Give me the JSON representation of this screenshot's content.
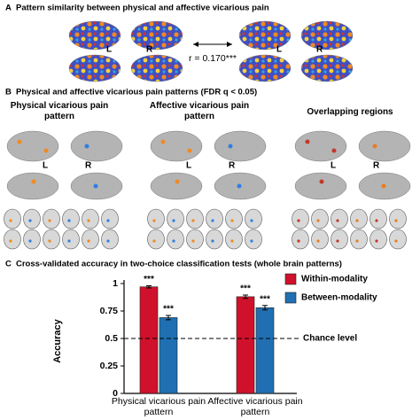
{
  "panel_a": {
    "label": "A",
    "title": "Pattern similarity between physical and affective vicarious pain",
    "hemispheres": [
      "L",
      "R",
      "L",
      "R"
    ],
    "correlation": "r = 0.170***"
  },
  "panel_b": {
    "label": "B",
    "title": "Physical and affective vicarious pain patterns (FDR q < 0.05)",
    "columns": [
      {
        "heading": "Physical vicarious pain pattern",
        "hemispheres": [
          "L",
          "R"
        ]
      },
      {
        "heading": "Affective vicarious pain pattern",
        "hemispheres": [
          "L",
          "R"
        ]
      },
      {
        "heading": "Overlapping regions",
        "hemispheres": [
          "L",
          "R"
        ]
      }
    ]
  },
  "panel_c": {
    "label": "C",
    "title": "Cross-validated accuracy in two-choice classification tests (whole brain patterns)"
  },
  "chart_data": {
    "type": "bar",
    "y_label": "Accuracy",
    "categories": [
      "Physical vicarious pain pattern",
      "Affective vicarious pain pattern"
    ],
    "series": [
      {
        "name": "Within-modality",
        "color": "#d0112b",
        "values": [
          0.97,
          0.88
        ],
        "errors": [
          0.01,
          0.015
        ],
        "significance": [
          "***",
          "***"
        ]
      },
      {
        "name": "Between-modality",
        "color": "#1f6fb2",
        "values": [
          0.69,
          0.78
        ],
        "errors": [
          0.02,
          0.02
        ],
        "significance": [
          "***",
          "***"
        ]
      }
    ],
    "reference_line": {
      "value": 0.5,
      "label": "Chance level"
    },
    "ylim": [
      0,
      1
    ],
    "yticks": [
      0,
      0.25,
      0.5,
      0.75,
      1
    ],
    "legend": "upper right"
  }
}
